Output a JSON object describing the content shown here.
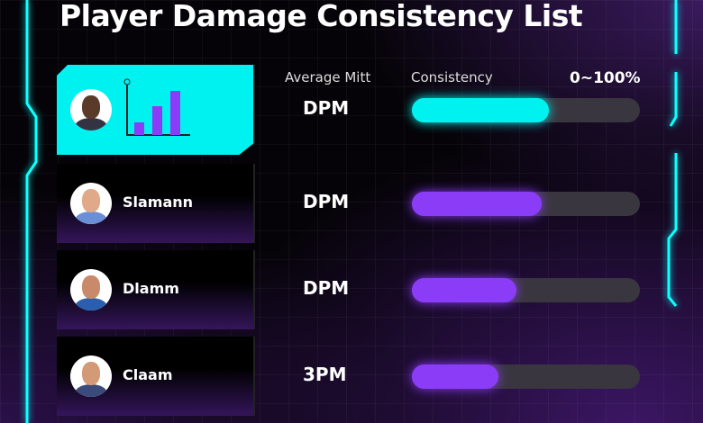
{
  "title": "Player Damage Consistency List",
  "headers": {
    "metric": "Average Mitt",
    "consistency": "Consistency",
    "range": "0~100%"
  },
  "colors": {
    "accent": "#00f2f0",
    "bar": "#8b3cf7",
    "track": "#3a363f"
  },
  "players": [
    {
      "name": "",
      "metric": "DPM",
      "consistency": 60,
      "highlighted": true,
      "icon": "bar-chart-icon"
    },
    {
      "name": "Slamann",
      "metric": "DPM",
      "consistency": 57
    },
    {
      "name": "Dlamm",
      "metric": "DPM",
      "consistency": 46
    },
    {
      "name": "Claam",
      "metric": "3PM",
      "consistency": 38
    }
  ]
}
